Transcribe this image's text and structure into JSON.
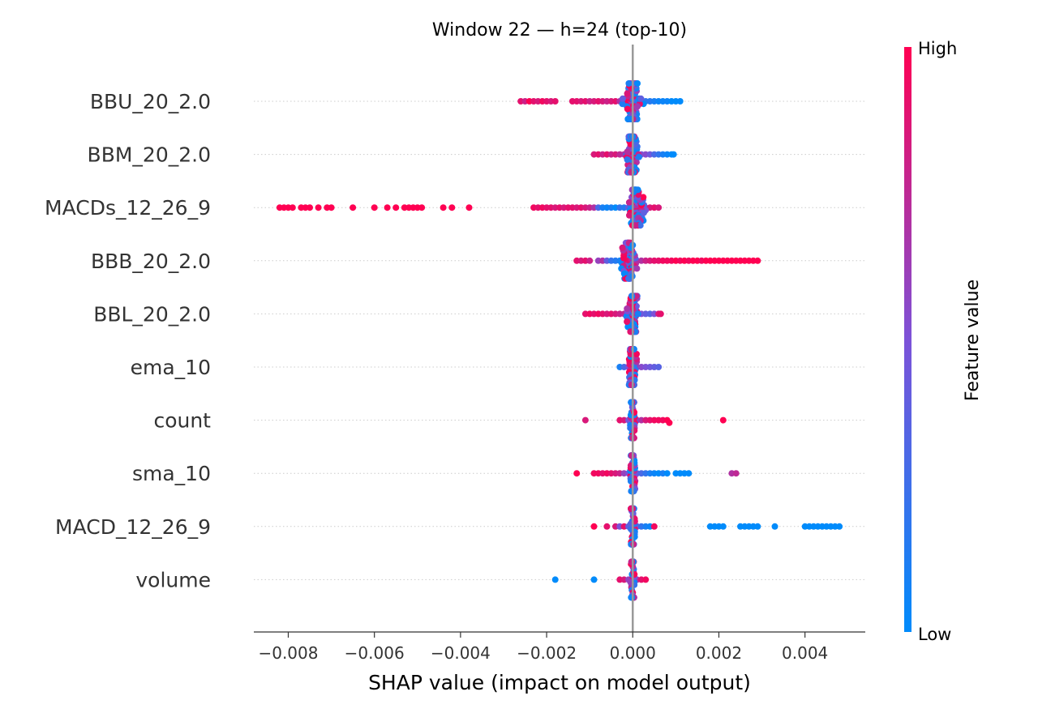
{
  "chart_data": {
    "type": "scatter",
    "subtype": "shap-beeswarm",
    "title": "Window 22 — h=24 (top-10)",
    "xlabel": "SHAP value (impact on model output)",
    "xlim": [
      -0.0088,
      0.0054
    ],
    "xticks": [
      -0.008,
      -0.006,
      -0.004,
      -0.002,
      0.0,
      0.002,
      0.004
    ],
    "xtick_labels": [
      "−0.008",
      "−0.006",
      "−0.004",
      "−0.002",
      "0.000",
      "0.002",
      "0.004"
    ],
    "zero_line": 0.0,
    "colorbar": {
      "label": "Feature value",
      "high_label": "High",
      "low_label": "Low",
      "high_color": "#ff0052",
      "low_color": "#008bfb"
    },
    "features": [
      {
        "name": "BBU_20_2.0",
        "points": [
          [
            -0.0026,
            0.9
          ],
          [
            -0.0025,
            0.8
          ],
          [
            -0.0024,
            1.0
          ],
          [
            -0.0023,
            0.9
          ],
          [
            -0.0022,
            0.85
          ],
          [
            -0.0021,
            0.95
          ],
          [
            -0.002,
            0.9
          ],
          [
            -0.0019,
            0.85
          ],
          [
            -0.0018,
            0.9
          ],
          [
            -0.0014,
            0.9
          ],
          [
            -0.0013,
            0.9
          ],
          [
            -0.0012,
            0.85
          ],
          [
            -0.0011,
            0.9
          ],
          [
            -0.001,
            0.8
          ],
          [
            -0.0009,
            0.85
          ],
          [
            -0.0008,
            0.9
          ],
          [
            -0.0007,
            0.85
          ],
          [
            -0.0006,
            0.8
          ],
          [
            -0.0005,
            0.85
          ],
          [
            -0.0004,
            0.9
          ],
          [
            -0.0003,
            0.7
          ],
          [
            -0.0002,
            0.75
          ],
          [
            -0.0001,
            0.6
          ],
          [
            0.0,
            0.5
          ],
          [
            0.0001,
            0.4
          ],
          [
            0.0002,
            0.3
          ],
          [
            0.0003,
            0.2
          ],
          [
            0.0004,
            0.15
          ],
          [
            0.0005,
            0.1
          ],
          [
            0.0006,
            0.05
          ],
          [
            0.0007,
            0.05
          ],
          [
            0.0008,
            0.05
          ],
          [
            0.0009,
            0.0
          ],
          [
            0.001,
            0.0
          ],
          [
            0.0011,
            0.0
          ]
        ],
        "density_center": 0.0,
        "density_spread": 0.0003
      },
      {
        "name": "BBM_20_2.0",
        "points": [
          [
            -0.0009,
            0.85
          ],
          [
            -0.0008,
            0.9
          ],
          [
            -0.0007,
            0.8
          ],
          [
            -0.0006,
            0.9
          ],
          [
            -0.0005,
            0.8
          ],
          [
            -0.0004,
            0.85
          ],
          [
            -0.0003,
            0.75
          ],
          [
            -0.0002,
            0.7
          ],
          [
            -0.0001,
            0.6
          ],
          [
            0.0,
            0.6
          ],
          [
            0.0001,
            0.55
          ],
          [
            0.0002,
            0.5
          ],
          [
            0.0003,
            0.55
          ],
          [
            0.0004,
            0.45
          ],
          [
            0.0005,
            0.3
          ],
          [
            0.0006,
            0.2
          ],
          [
            0.0007,
            0.1
          ],
          [
            0.0008,
            0.05
          ],
          [
            0.0009,
            0.0
          ],
          [
            0.00095,
            0.0
          ]
        ],
        "density_center": 0.0,
        "density_spread": 0.0002
      },
      {
        "name": "MACDs_12_26_9",
        "points": [
          [
            -0.0082,
            1.0
          ],
          [
            -0.0081,
            1.0
          ],
          [
            -0.008,
            1.0
          ],
          [
            -0.0079,
            1.0
          ],
          [
            -0.0077,
            1.0
          ],
          [
            -0.0076,
            1.0
          ],
          [
            -0.0075,
            1.0
          ],
          [
            -0.0073,
            1.0
          ],
          [
            -0.0071,
            1.0
          ],
          [
            -0.007,
            1.0
          ],
          [
            -0.0065,
            1.0
          ],
          [
            -0.006,
            1.0
          ],
          [
            -0.0057,
            1.0
          ],
          [
            -0.0055,
            1.0
          ],
          [
            -0.0053,
            1.0
          ],
          [
            -0.0052,
            1.0
          ],
          [
            -0.0051,
            1.0
          ],
          [
            -0.005,
            1.0
          ],
          [
            -0.0049,
            1.0
          ],
          [
            -0.0044,
            1.0
          ],
          [
            -0.0042,
            1.0
          ],
          [
            -0.0038,
            1.0
          ],
          [
            -0.0023,
            0.95
          ],
          [
            -0.0022,
            0.9
          ],
          [
            -0.0021,
            0.95
          ],
          [
            -0.002,
            0.9
          ],
          [
            -0.0019,
            0.9
          ],
          [
            -0.0018,
            0.85
          ],
          [
            -0.0017,
            0.9
          ],
          [
            -0.0016,
            0.85
          ],
          [
            -0.0015,
            0.9
          ],
          [
            -0.0014,
            0.9
          ],
          [
            -0.0013,
            0.85
          ],
          [
            -0.0012,
            0.9
          ],
          [
            -0.0011,
            0.85
          ],
          [
            -0.001,
            0.8
          ],
          [
            -0.0009,
            0.7
          ],
          [
            -0.0008,
            0.3
          ],
          [
            -0.0007,
            0.1
          ],
          [
            -0.0006,
            0.05
          ],
          [
            -0.0005,
            0.1
          ],
          [
            -0.0004,
            0.0
          ],
          [
            -0.0003,
            0.2
          ],
          [
            -0.0002,
            0.15
          ],
          [
            -0.0001,
            0.4
          ],
          [
            0.0,
            0.5
          ],
          [
            0.0001,
            0.45
          ],
          [
            0.0002,
            0.4
          ],
          [
            0.0003,
            0.45
          ],
          [
            0.0004,
            0.85
          ],
          [
            0.0005,
            0.9
          ],
          [
            0.0006,
            0.85
          ]
        ],
        "density_center": 0.0001,
        "density_spread": 0.00025
      },
      {
        "name": "BBB_20_2.0",
        "points": [
          [
            -0.0013,
            0.9
          ],
          [
            -0.0012,
            0.85
          ],
          [
            -0.0011,
            0.9
          ],
          [
            -0.001,
            0.8
          ],
          [
            -0.0008,
            0.6
          ],
          [
            -0.0007,
            0.7
          ],
          [
            -0.0006,
            0.4
          ],
          [
            -0.0005,
            0.2
          ],
          [
            -0.0004,
            0.15
          ],
          [
            -0.0003,
            0.1
          ],
          [
            -0.0002,
            0.05
          ],
          [
            -0.0001,
            0.1
          ],
          [
            0.0,
            0.3
          ],
          [
            0.0001,
            0.5
          ],
          [
            0.0002,
            0.7
          ],
          [
            0.0003,
            0.8
          ],
          [
            0.0004,
            0.85
          ],
          [
            0.0005,
            0.9
          ],
          [
            0.0006,
            0.9
          ],
          [
            0.0007,
            0.95
          ],
          [
            0.0008,
            0.95
          ],
          [
            0.0009,
            0.95
          ],
          [
            0.001,
            1.0
          ],
          [
            0.0011,
            0.95
          ],
          [
            0.0012,
            1.0
          ],
          [
            0.0013,
            0.95
          ],
          [
            0.0014,
            1.0
          ],
          [
            0.0015,
            1.0
          ],
          [
            0.0016,
            0.95
          ],
          [
            0.0017,
            1.0
          ],
          [
            0.0018,
            1.0
          ],
          [
            0.0019,
            1.0
          ],
          [
            0.002,
            1.0
          ],
          [
            0.0021,
            1.0
          ],
          [
            0.0022,
            1.0
          ],
          [
            0.0023,
            1.0
          ],
          [
            0.0024,
            1.0
          ],
          [
            0.0025,
            1.0
          ],
          [
            0.0026,
            1.0
          ],
          [
            0.0027,
            1.0
          ],
          [
            0.0028,
            1.0
          ],
          [
            0.0029,
            1.0
          ]
        ],
        "density_center": -0.0001,
        "density_spread": 0.00025
      },
      {
        "name": "BBL_20_2.0",
        "points": [
          [
            -0.0011,
            0.9
          ],
          [
            -0.001,
            0.95
          ],
          [
            -0.0009,
            0.9
          ],
          [
            -0.0008,
            0.95
          ],
          [
            -0.0007,
            0.9
          ],
          [
            -0.0006,
            0.85
          ],
          [
            -0.0005,
            0.9
          ],
          [
            -0.0004,
            0.85
          ],
          [
            -0.0003,
            0.8
          ],
          [
            -0.0002,
            0.75
          ],
          [
            -0.0001,
            0.7
          ],
          [
            0.0,
            0.6
          ],
          [
            0.0001,
            0.55
          ],
          [
            0.0002,
            0.5
          ],
          [
            0.0003,
            0.4
          ],
          [
            0.0004,
            0.35
          ],
          [
            0.0005,
            0.5
          ],
          [
            0.0006,
            0.85
          ],
          [
            0.00065,
            0.9
          ]
        ],
        "density_center": 0.0,
        "density_spread": 0.00018
      },
      {
        "name": "ema_10",
        "points": [
          [
            -0.0003,
            0.1
          ],
          [
            -0.0002,
            0.3
          ],
          [
            -0.0001,
            0.5
          ],
          [
            0.0,
            0.6
          ],
          [
            0.0001,
            0.65
          ],
          [
            0.0002,
            0.55
          ],
          [
            0.0003,
            0.5
          ],
          [
            0.0004,
            0.45
          ],
          [
            0.0005,
            0.4
          ],
          [
            0.0006,
            0.35
          ]
        ],
        "density_center": 0.0,
        "density_spread": 0.00012
      },
      {
        "name": "count",
        "points": [
          [
            -0.0011,
            0.85
          ],
          [
            -0.0003,
            0.9
          ],
          [
            -0.0002,
            0.85
          ],
          [
            -0.0001,
            0.5
          ],
          [
            0.0,
            0.0
          ],
          [
            0.0001,
            0.3
          ],
          [
            0.0002,
            0.7
          ],
          [
            0.0003,
            0.85
          ],
          [
            0.0004,
            0.9
          ],
          [
            0.0005,
            0.95
          ],
          [
            0.0006,
            0.95
          ],
          [
            0.0007,
            0.95
          ],
          [
            0.0008,
            1.0
          ],
          [
            0.00085,
            1.0
          ],
          [
            0.0021,
            1.0
          ]
        ],
        "density_center": 0.0,
        "density_spread": 8e-05
      },
      {
        "name": "sma_10",
        "points": [
          [
            -0.0013,
            1.0
          ],
          [
            -0.0009,
            0.95
          ],
          [
            -0.0008,
            0.95
          ],
          [
            -0.0007,
            0.9
          ],
          [
            -0.0006,
            0.95
          ],
          [
            -0.0005,
            0.9
          ],
          [
            -0.0004,
            0.85
          ],
          [
            -0.0003,
            0.8
          ],
          [
            -0.0002,
            0.6
          ],
          [
            -0.0001,
            0.5
          ],
          [
            0.0,
            0.55
          ],
          [
            0.0001,
            0.4
          ],
          [
            0.0002,
            0.3
          ],
          [
            0.0003,
            0.2
          ],
          [
            0.0004,
            0.1
          ],
          [
            0.0005,
            0.05
          ],
          [
            0.0006,
            0.0
          ],
          [
            0.0007,
            0.1
          ],
          [
            0.0008,
            0.0
          ],
          [
            0.001,
            0.0
          ],
          [
            0.0011,
            0.0
          ],
          [
            0.0012,
            0.0
          ],
          [
            0.0013,
            0.0
          ],
          [
            0.0023,
            0.7
          ],
          [
            0.0024,
            0.75
          ]
        ],
        "density_center": 0.0,
        "density_spread": 8e-05
      },
      {
        "name": "MACD_12_26_9",
        "points": [
          [
            -0.0009,
            1.0
          ],
          [
            -0.0006,
            0.9
          ],
          [
            -0.0004,
            0.85
          ],
          [
            -0.0003,
            0.5
          ],
          [
            -0.0002,
            0.9
          ],
          [
            -0.0001,
            0.4
          ],
          [
            0.0,
            0.55
          ],
          [
            0.0001,
            0.5
          ],
          [
            0.0002,
            0.2
          ],
          [
            0.0003,
            0.1
          ],
          [
            0.0004,
            0.05
          ],
          [
            0.0005,
            0.95
          ],
          [
            0.0018,
            0.0
          ],
          [
            0.0019,
            0.0
          ],
          [
            0.002,
            0.0
          ],
          [
            0.0021,
            0.0
          ],
          [
            0.0025,
            0.0
          ],
          [
            0.0026,
            0.0
          ],
          [
            0.0027,
            0.0
          ],
          [
            0.0028,
            0.0
          ],
          [
            0.0029,
            0.0
          ],
          [
            0.0033,
            0.0
          ],
          [
            0.004,
            0.0
          ],
          [
            0.0041,
            0.0
          ],
          [
            0.0042,
            0.0
          ],
          [
            0.0043,
            0.0
          ],
          [
            0.0044,
            0.0
          ],
          [
            0.0045,
            0.0
          ],
          [
            0.0046,
            0.0
          ],
          [
            0.0047,
            0.0
          ],
          [
            0.0048,
            0.0
          ]
        ],
        "density_center": 0.0,
        "density_spread": 8e-05
      },
      {
        "name": "volume",
        "points": [
          [
            -0.0018,
            0.0
          ],
          [
            -0.0009,
            0.0
          ],
          [
            -0.0003,
            0.9
          ],
          [
            -0.0002,
            0.85
          ],
          [
            -0.0001,
            0.6
          ],
          [
            0.0,
            0.4
          ],
          [
            0.0001,
            0.7
          ],
          [
            0.0002,
            0.9
          ],
          [
            0.0003,
            0.95
          ]
        ],
        "density_center": 0.0,
        "density_spread": 6e-05
      }
    ]
  }
}
